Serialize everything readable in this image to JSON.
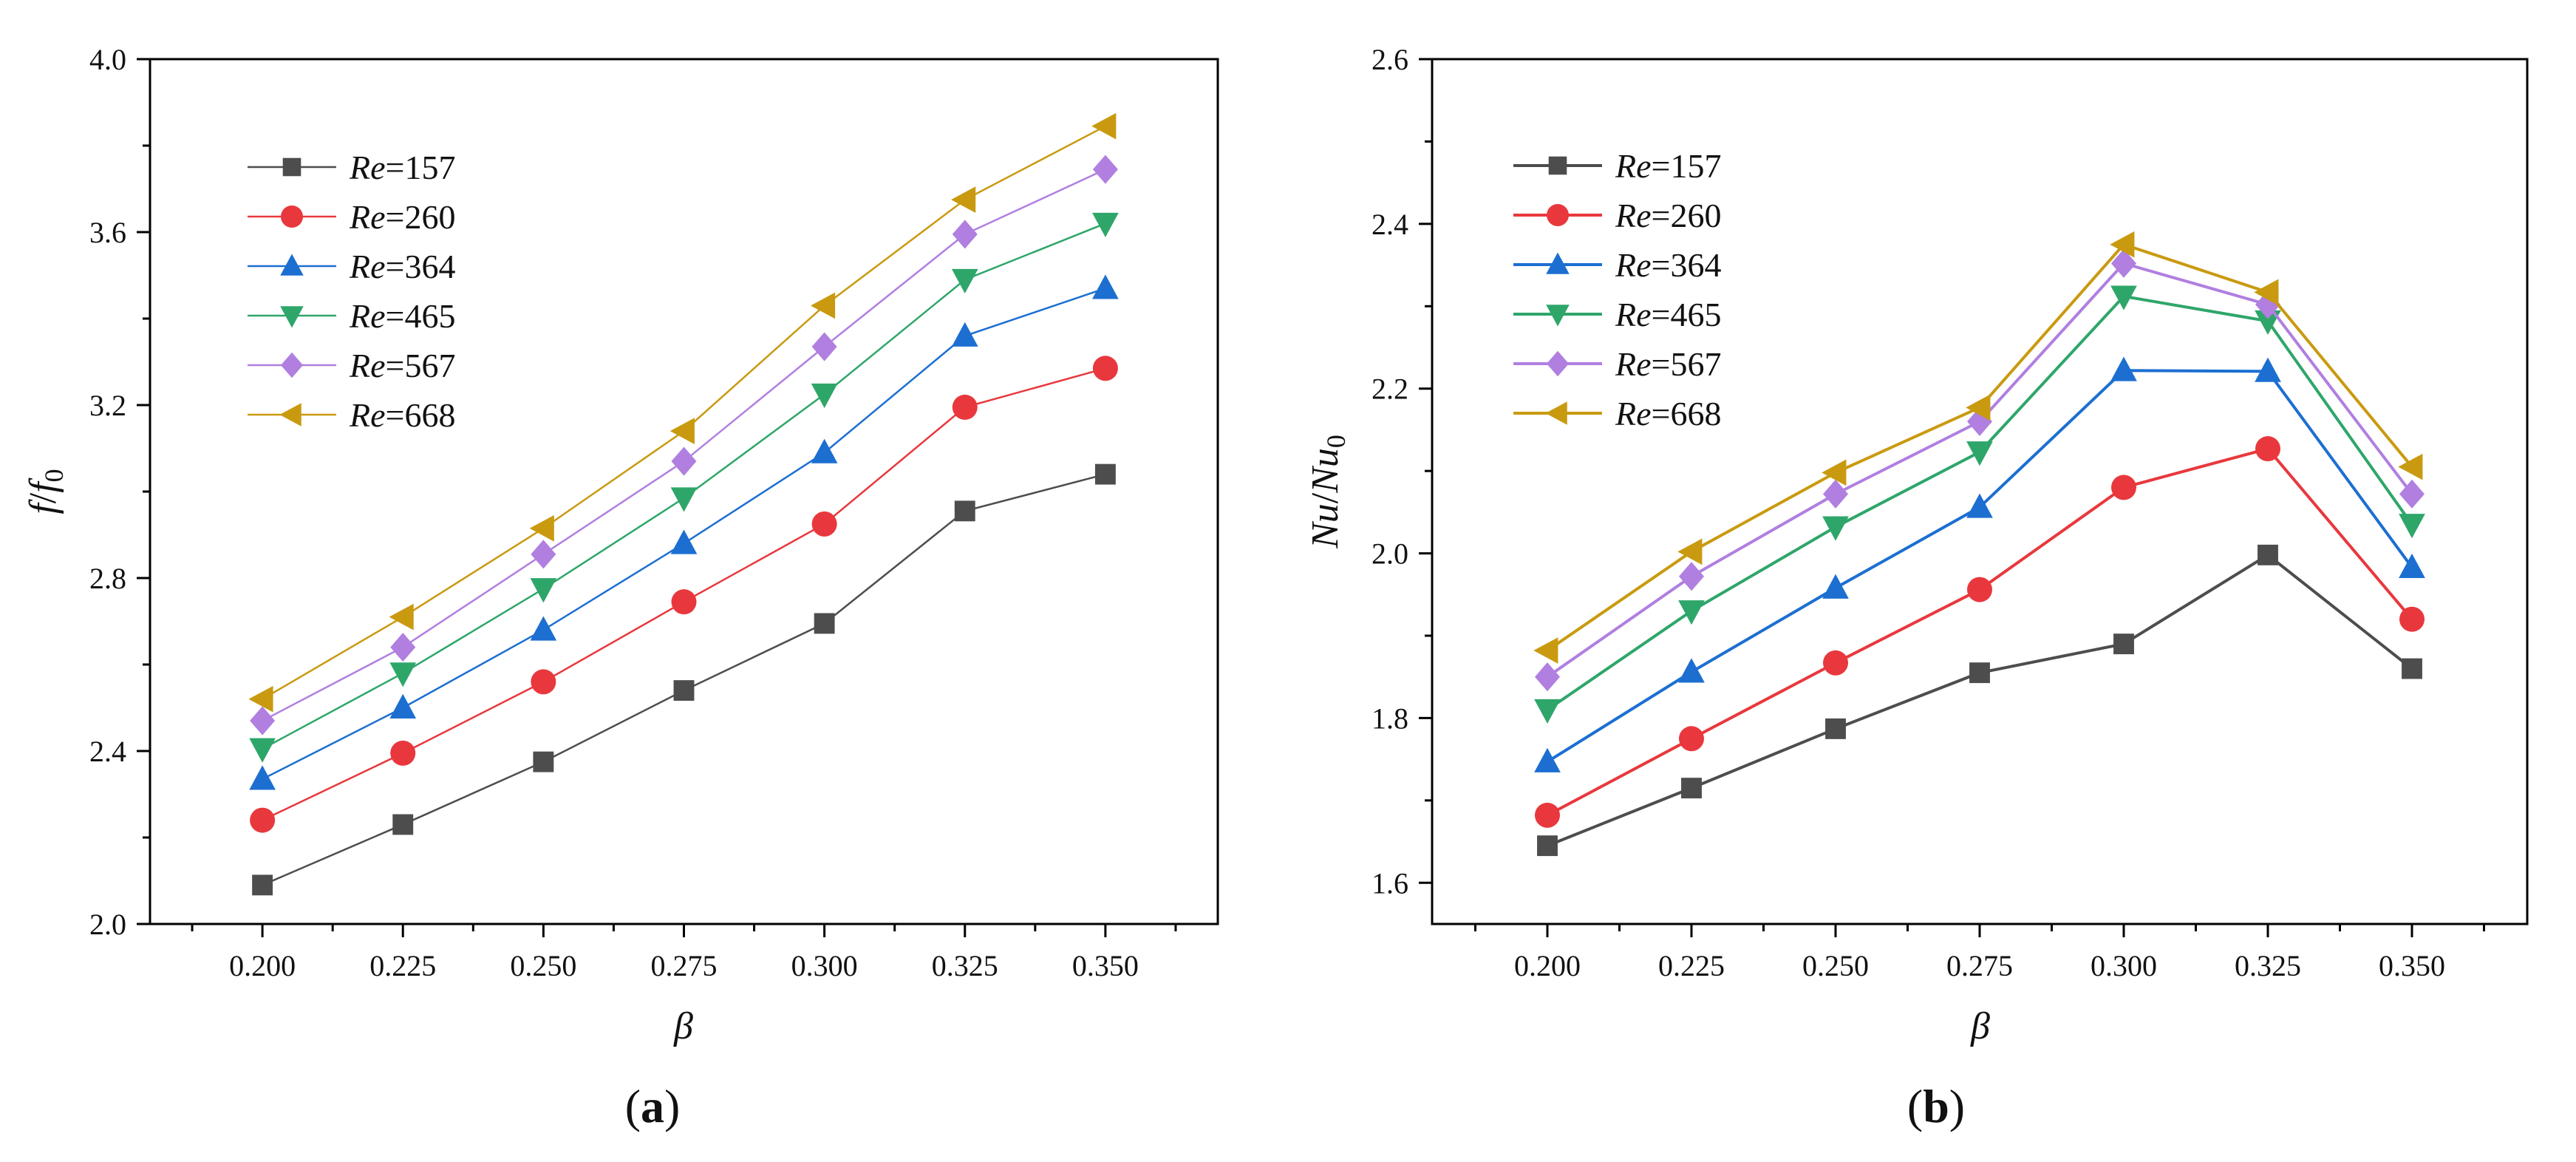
{
  "chart_data": [
    {
      "type": "line",
      "panel_label": "a",
      "xlabel": "β",
      "ylabel": "f/f0",
      "ylabel_main": "f",
      "ylabel_sep": "/",
      "ylabel_den": "f",
      "ylabel_sub": "0",
      "xlim": [
        0.18,
        0.37
      ],
      "ylim": [
        2.0,
        4.0
      ],
      "xticks": [
        "0.200",
        "0.225",
        "0.250",
        "0.275",
        "0.300",
        "0.325",
        "0.350"
      ],
      "yticks": [
        "2.0",
        "2.4",
        "2.8",
        "3.2",
        "3.6",
        "4.0"
      ],
      "legend_position": "upper-left",
      "x": [
        0.2,
        0.225,
        0.25,
        0.275,
        0.3,
        0.325,
        0.35
      ],
      "series": [
        {
          "name": "Re=157",
          "label_var": "Re",
          "label_val": "=157",
          "color": "#4d4d4d",
          "marker": "square",
          "values": [
            2.09,
            2.23,
            2.375,
            2.54,
            2.695,
            2.955,
            3.04
          ]
        },
        {
          "name": "Re=260",
          "label_var": "Re",
          "label_val": "=260",
          "color": "#e8383d",
          "marker": "circle",
          "values": [
            2.24,
            2.395,
            2.56,
            2.745,
            2.925,
            3.195,
            3.285
          ]
        },
        {
          "name": "Re=364",
          "label_var": "Re",
          "label_val": "=364",
          "color": "#1c6fd1",
          "marker": "triangle-up",
          "values": [
            2.335,
            2.5,
            2.68,
            2.88,
            3.09,
            3.36,
            3.47
          ]
        },
        {
          "name": "Re=465",
          "label_var": "Re",
          "label_val": "=465",
          "color": "#2ea66a",
          "marker": "triangle-down",
          "values": [
            2.405,
            2.58,
            2.775,
            2.985,
            3.225,
            3.49,
            3.62
          ]
        },
        {
          "name": "Re=567",
          "label_var": "Re",
          "label_val": "=567",
          "color": "#b07fe0",
          "marker": "diamond",
          "values": [
            2.47,
            2.64,
            2.855,
            3.07,
            3.335,
            3.595,
            3.745
          ]
        },
        {
          "name": "Re=668",
          "label_var": "Re",
          "label_val": "=668",
          "color": "#c99a10",
          "marker": "triangle-left",
          "values": [
            2.52,
            2.71,
            2.915,
            3.14,
            3.43,
            3.675,
            3.845
          ]
        }
      ]
    },
    {
      "type": "line",
      "panel_label": "b",
      "xlabel": "β",
      "ylabel": "Nu/Nu0",
      "ylabel_main": "Nu",
      "ylabel_sep": "/",
      "ylabel_den": "Nu",
      "ylabel_sub": "0",
      "xlim": [
        0.18,
        0.37
      ],
      "ylim": [
        1.55,
        2.6
      ],
      "xticks": [
        "0.200",
        "0.225",
        "0.250",
        "0.275",
        "0.300",
        "0.325",
        "0.350"
      ],
      "yticks": [
        "1.6",
        "1.8",
        "2.0",
        "2.2",
        "2.4",
        "2.6"
      ],
      "legend_position": "upper-left",
      "x": [
        0.2,
        0.225,
        0.25,
        0.275,
        0.3,
        0.325,
        0.35
      ],
      "series": [
        {
          "name": "Re=157",
          "label_var": "Re",
          "label_val": "=157",
          "color": "#4d4d4d",
          "marker": "square",
          "values": [
            1.645,
            1.715,
            1.787,
            1.855,
            1.89,
            1.998,
            1.86
          ]
        },
        {
          "name": "Re=260",
          "label_var": "Re",
          "label_val": "=260",
          "color": "#e8383d",
          "marker": "circle",
          "values": [
            1.682,
            1.775,
            1.867,
            1.956,
            2.08,
            2.127,
            1.92
          ]
        },
        {
          "name": "Re=364",
          "label_var": "Re",
          "label_val": "=364",
          "color": "#1c6fd1",
          "marker": "triangle-up",
          "values": [
            1.747,
            1.856,
            1.958,
            2.056,
            2.222,
            2.221,
            1.983
          ]
        },
        {
          "name": "Re=465",
          "label_var": "Re",
          "label_val": "=465",
          "color": "#2ea66a",
          "marker": "triangle-down",
          "values": [
            1.81,
            1.93,
            2.032,
            2.123,
            2.312,
            2.282,
            2.035
          ]
        },
        {
          "name": "Re=567",
          "label_var": "Re",
          "label_val": "=567",
          "color": "#b07fe0",
          "marker": "diamond",
          "values": [
            1.85,
            1.972,
            2.072,
            2.16,
            2.352,
            2.302,
            2.072
          ]
        },
        {
          "name": "Re=668",
          "label_var": "Re",
          "label_val": "=668",
          "color": "#c99a10",
          "marker": "triangle-left",
          "values": [
            1.882,
            2.002,
            2.098,
            2.177,
            2.375,
            2.317,
            2.105
          ]
        }
      ]
    }
  ]
}
